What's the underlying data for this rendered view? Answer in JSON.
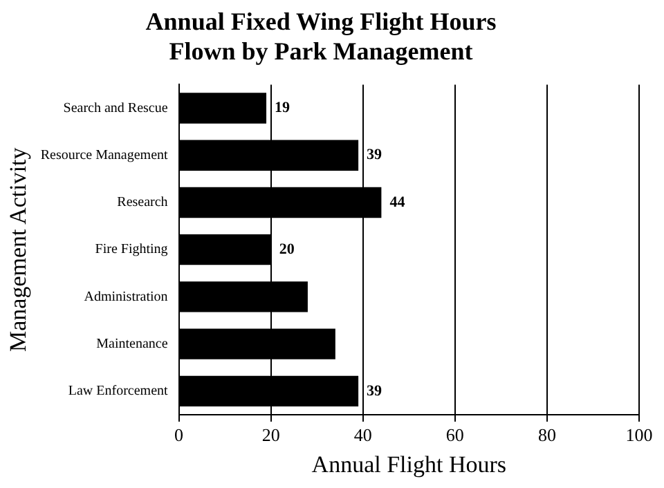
{
  "chart_data": {
    "type": "bar",
    "orientation": "horizontal",
    "title": "Annual Fixed Wing Flight Hours\nFlown by Park Management",
    "xlabel": "Annual Flight Hours",
    "ylabel": "Management Activity",
    "categories": [
      "Search and Rescue",
      "Resource Management",
      "Research",
      "Fire Fighting",
      "Administration",
      "Maintenance",
      "Law Enforcement"
    ],
    "values": [
      19,
      39,
      44,
      20,
      28,
      34,
      39
    ],
    "value_labels": [
      "19",
      "39",
      "44",
      "20",
      null,
      null,
      "39"
    ],
    "color": "#000000",
    "xlim": [
      0,
      100
    ],
    "xticks": [
      0,
      20,
      40,
      60,
      80,
      100
    ],
    "grid": "x",
    "legend": false
  }
}
